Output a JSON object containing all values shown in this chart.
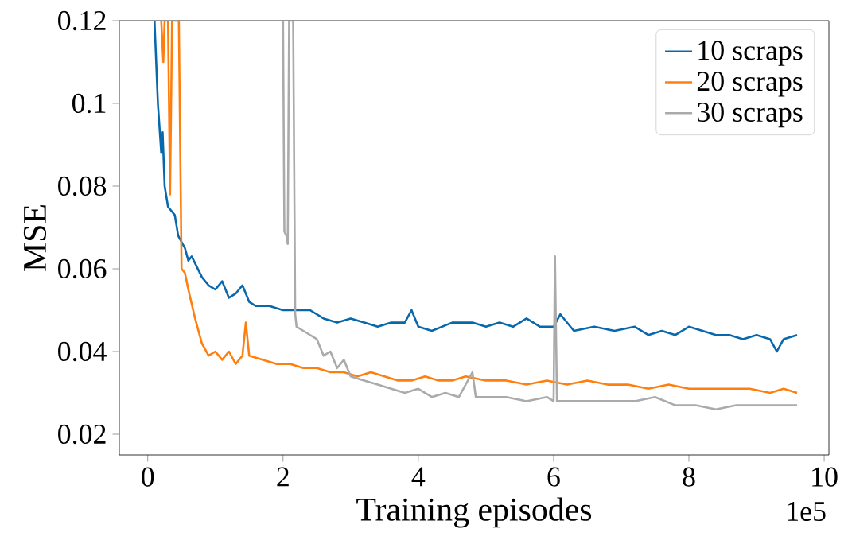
{
  "chart_data": {
    "type": "line",
    "xlabel": "Training episodes",
    "ylabel": "MSE",
    "xlim": [
      -0.42,
      10.07
    ],
    "ylim": [
      0.015,
      0.12
    ],
    "xticks": [
      0,
      2,
      4,
      6,
      8,
      10
    ],
    "yticks": [
      0.02,
      0.04,
      0.06,
      0.08,
      0.1,
      0.12
    ],
    "legend": "top right",
    "grid": false,
    "marker": "none",
    "line_style": "solid",
    "annotations": [
      "1e5"
    ],
    "series": [
      {
        "name": "10 scraps",
        "color": "#0868ac",
        "x": [
          0.1,
          0.15,
          0.2,
          0.22,
          0.25,
          0.3,
          0.4,
          0.45,
          0.55,
          0.6,
          0.65,
          0.8,
          0.9,
          1.0,
          1.1,
          1.2,
          1.3,
          1.4,
          1.5,
          1.6,
          1.8,
          2.0,
          2.2,
          2.4,
          2.6,
          2.8,
          3.0,
          3.2,
          3.4,
          3.6,
          3.8,
          3.9,
          4.0,
          4.2,
          4.5,
          4.8,
          5.0,
          5.2,
          5.4,
          5.6,
          5.8,
          6.0,
          6.1,
          6.3,
          6.6,
          6.9,
          7.2,
          7.4,
          7.6,
          7.8,
          8.0,
          8.2,
          8.4,
          8.6,
          8.8,
          9.0,
          9.2,
          9.3,
          9.4,
          9.6
        ],
        "values": [
          0.12,
          0.1,
          0.088,
          0.093,
          0.08,
          0.075,
          0.073,
          0.068,
          0.065,
          0.062,
          0.063,
          0.058,
          0.056,
          0.055,
          0.057,
          0.053,
          0.054,
          0.056,
          0.052,
          0.051,
          0.051,
          0.05,
          0.05,
          0.05,
          0.048,
          0.047,
          0.048,
          0.047,
          0.046,
          0.047,
          0.047,
          0.05,
          0.046,
          0.045,
          0.047,
          0.047,
          0.046,
          0.047,
          0.046,
          0.048,
          0.046,
          0.046,
          0.049,
          0.045,
          0.046,
          0.045,
          0.046,
          0.044,
          0.045,
          0.044,
          0.046,
          0.045,
          0.044,
          0.044,
          0.043,
          0.044,
          0.043,
          0.04,
          0.043,
          0.044
        ]
      },
      {
        "name": "20 scraps",
        "color": "#ff7f0e",
        "x": [
          0.2,
          0.23,
          0.25,
          0.3,
          0.33,
          0.36,
          0.42,
          0.46,
          0.5,
          0.55,
          0.6,
          0.7,
          0.8,
          0.9,
          1.0,
          1.1,
          1.2,
          1.3,
          1.4,
          1.45,
          1.5,
          1.7,
          1.9,
          2.1,
          2.3,
          2.5,
          2.7,
          2.9,
          3.1,
          3.3,
          3.5,
          3.7,
          3.9,
          4.1,
          4.3,
          4.5,
          4.7,
          5.0,
          5.3,
          5.6,
          5.9,
          6.2,
          6.5,
          6.8,
          7.1,
          7.4,
          7.7,
          8.0,
          8.3,
          8.6,
          8.9,
          9.2,
          9.4,
          9.6
        ],
        "values": [
          0.12,
          0.11,
          0.12,
          0.12,
          0.078,
          0.12,
          0.12,
          0.12,
          0.06,
          0.059,
          0.055,
          0.048,
          0.042,
          0.039,
          0.04,
          0.038,
          0.04,
          0.037,
          0.039,
          0.047,
          0.039,
          0.038,
          0.037,
          0.037,
          0.036,
          0.036,
          0.035,
          0.035,
          0.034,
          0.035,
          0.034,
          0.033,
          0.033,
          0.034,
          0.033,
          0.033,
          0.034,
          0.033,
          0.033,
          0.032,
          0.033,
          0.032,
          0.033,
          0.032,
          0.032,
          0.031,
          0.032,
          0.031,
          0.031,
          0.031,
          0.031,
          0.03,
          0.031,
          0.03
        ]
      },
      {
        "name": "30 scraps",
        "color": "#aaaaaa",
        "x": [
          2.0,
          2.02,
          2.05,
          2.07,
          2.09,
          2.15,
          2.18,
          2.2,
          2.3,
          2.5,
          2.6,
          2.7,
          2.8,
          2.9,
          3.0,
          3.2,
          3.4,
          3.6,
          3.8,
          4.0,
          4.2,
          4.4,
          4.6,
          4.8,
          4.85,
          5.0,
          5.3,
          5.6,
          5.9,
          6.0,
          6.02,
          6.05,
          6.3,
          6.6,
          6.9,
          7.2,
          7.5,
          7.8,
          8.1,
          8.4,
          8.7,
          9.0,
          9.3,
          9.6
        ],
        "values": [
          0.12,
          0.069,
          0.068,
          0.066,
          0.12,
          0.12,
          0.049,
          0.046,
          0.045,
          0.043,
          0.039,
          0.04,
          0.036,
          0.038,
          0.034,
          0.033,
          0.032,
          0.031,
          0.03,
          0.031,
          0.029,
          0.03,
          0.029,
          0.035,
          0.029,
          0.029,
          0.029,
          0.028,
          0.029,
          0.028,
          0.063,
          0.028,
          0.028,
          0.028,
          0.028,
          0.028,
          0.029,
          0.027,
          0.027,
          0.026,
          0.027,
          0.027,
          0.027,
          0.027
        ]
      }
    ]
  }
}
